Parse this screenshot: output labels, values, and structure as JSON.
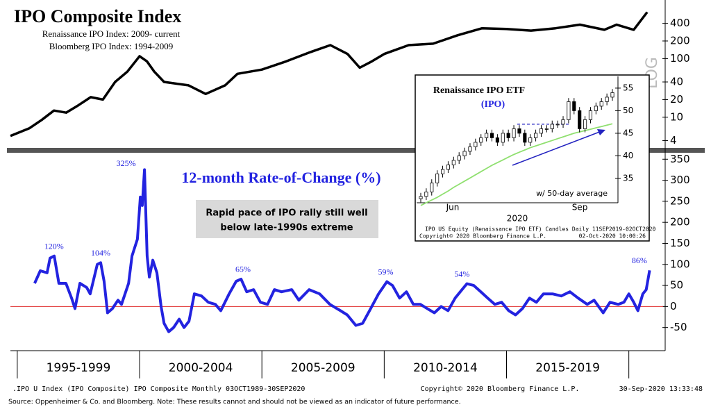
{
  "chart_data": [
    {
      "type": "line",
      "title": "IPO Composite Index",
      "subtitle": [
        "Renaissance IPO Index: 2009- current",
        "Bloomberg IPO Index: 1994-2009"
      ],
      "x": [
        1994.72,
        1995.5,
        1996.0,
        1996.5,
        1997.0,
        1997.5,
        1998.0,
        1998.5,
        1999.0,
        1999.5,
        2000.0,
        2000.3,
        2000.6,
        2001.0,
        2002.0,
        2002.7,
        2003.5,
        2004.0,
        2005.0,
        2006.0,
        2007.0,
        2007.8,
        2008.5,
        2009.0,
        2009.5,
        2010.0,
        2011.0,
        2012.0,
        2013.0,
        2014.0,
        2015.0,
        2016.0,
        2017.0,
        2018.0,
        2019.0,
        2019.5,
        2020.2,
        2020.75
      ],
      "values": [
        4.8,
        6.5,
        9,
        13,
        12,
        16,
        22,
        20,
        40,
        60,
        110,
        90,
        60,
        40,
        35,
        25,
        35,
        55,
        65,
        90,
        130,
        170,
        120,
        70,
        90,
        120,
        170,
        180,
        250,
        330,
        320,
        300,
        330,
        380,
        310,
        380,
        310,
        620
      ],
      "color": "#000000",
      "log_scale": true,
      "scale_note": "LOG",
      "xlim": [
        1994.72,
        2021.4
      ],
      "ylim": [
        3,
        1000
      ],
      "yticks": [
        4,
        10,
        20,
        40,
        100,
        200,
        400
      ]
    },
    {
      "type": "line",
      "title": "12-month Rate-of-Change (%)",
      "note": [
        "Rapid pace of IPO rally still well",
        "below late-1990s extreme"
      ],
      "x": [
        1995.71,
        1995.94,
        1996.22,
        1996.34,
        1996.51,
        1996.7,
        1996.99,
        1997.22,
        1997.36,
        1997.56,
        1997.84,
        1997.98,
        1998.27,
        1998.41,
        1998.55,
        1998.69,
        1998.89,
        1999.12,
        1999.26,
        1999.55,
        1999.69,
        1999.91,
        2000.03,
        2000.11,
        2000.2,
        2000.31,
        2000.4,
        2000.54,
        2000.71,
        2000.88,
        2001.0,
        2001.19,
        2001.39,
        2001.62,
        2001.82,
        2002.02,
        2002.24,
        2002.53,
        2002.81,
        2003.1,
        2003.32,
        2003.66,
        2003.95,
        2004.15,
        2004.38,
        2004.66,
        2004.94,
        2005.23,
        2005.51,
        2005.8,
        2006.22,
        2006.51,
        2006.93,
        2007.36,
        2007.78,
        2008.21,
        2008.49,
        2008.84,
        2009.12,
        2009.4,
        2009.77,
        2010.11,
        2010.34,
        2010.63,
        2010.91,
        2011.19,
        2011.48,
        2011.76,
        2012.05,
        2012.33,
        2012.61,
        2012.9,
        2013.18,
        2013.38,
        2013.66,
        2013.95,
        2014.23,
        2014.52,
        2014.8,
        2015.09,
        2015.37,
        2015.65,
        2015.94,
        2016.22,
        2016.51,
        2016.88,
        2017.24,
        2017.59,
        2017.93,
        2018.3,
        2018.58,
        2018.95,
        2019.23,
        2019.57,
        2019.8,
        2020.0,
        2020.2,
        2020.37,
        2020.57,
        2020.71,
        2020.85
      ],
      "values": [
        55,
        85,
        80,
        115,
        120,
        55,
        55,
        20,
        -5,
        55,
        45,
        30,
        100,
        104,
        60,
        -15,
        -5,
        15,
        5,
        55,
        120,
        160,
        260,
        240,
        325,
        120,
        70,
        110,
        80,
        0,
        -40,
        -60,
        -50,
        -30,
        -50,
        -35,
        30,
        25,
        10,
        5,
        -10,
        30,
        60,
        65,
        35,
        40,
        10,
        5,
        40,
        35,
        40,
        15,
        40,
        30,
        5,
        -10,
        -20,
        -45,
        -40,
        -10,
        30,
        59,
        50,
        20,
        35,
        5,
        5,
        -5,
        -15,
        0,
        -10,
        20,
        40,
        54,
        50,
        35,
        20,
        5,
        10,
        -10,
        -20,
        -5,
        20,
        10,
        30,
        30,
        25,
        35,
        20,
        5,
        15,
        -15,
        10,
        5,
        10,
        30,
        10,
        -10,
        30,
        40,
        86
      ],
      "color": "#2323e0",
      "zero_line_color": "#e03030",
      "annotations": [
        {
          "label": "120%",
          "value": 120,
          "x": 1996.5
        },
        {
          "label": "104%",
          "value": 104,
          "x": 1998.41
        },
        {
          "label": "325%",
          "value": 325,
          "x": 1999.45
        },
        {
          "label": "65%",
          "value": 65,
          "x": 2004.23
        },
        {
          "label": "59%",
          "value": 59,
          "x": 2010.06
        },
        {
          "label": "54%",
          "value": 54,
          "x": 2013.18
        },
        {
          "label": "86%",
          "value": 86,
          "x": 2020.43
        }
      ],
      "xlim": [
        1994.72,
        2021.4
      ],
      "xticks": [
        1995,
        2000,
        2005,
        2010,
        2015,
        2020
      ],
      "x_period_labels": [
        "1995-1999",
        "2000-2004",
        "2005-2009",
        "2010-2014",
        "2015-2019"
      ],
      "ylim": [
        -105,
        362
      ],
      "yticks": [
        -50,
        0,
        50,
        100,
        150,
        200,
        250,
        300,
        350
      ]
    },
    {
      "type": "candlestick",
      "title": "Renaissance IPO ETF",
      "subtitle": "(IPO)",
      "legend": "w/ 50-day average",
      "x_labels": [
        "Jun",
        "Sep"
      ],
      "year_label": "2020",
      "footer": [
        "IPO US Equity (Renaissance IPO ETF) Candles  Daily 11SEP2019-02OCT2020",
        "Copyright© 2020 Bloomberg Finance L.P.",
        "02-Oct-2020 10:00:26"
      ],
      "open": [
        30.5,
        31,
        32,
        34,
        36,
        37,
        38,
        39,
        40,
        41,
        42,
        43,
        44,
        45,
        44,
        43,
        45,
        44,
        46,
        45,
        43,
        44,
        45,
        46,
        46,
        47,
        47,
        48,
        52,
        50,
        46,
        48,
        50,
        51,
        52,
        53
      ],
      "high": [
        31.8,
        32.8,
        34.8,
        36.8,
        37.8,
        38.8,
        39.8,
        40.8,
        41.8,
        42.8,
        43.8,
        44.8,
        45.8,
        45.8,
        44.8,
        45.8,
        45.8,
        46.8,
        46.8,
        45.8,
        44.8,
        45.8,
        46.8,
        46.8,
        47.8,
        47.8,
        48.8,
        52.8,
        52.8,
        50.8,
        48.8,
        50.8,
        51.8,
        52.8,
        53.8,
        54.8
      ],
      "low": [
        29.7,
        30.2,
        31.2,
        33.2,
        35.2,
        36.2,
        37.2,
        38.2,
        39.2,
        40.2,
        41.2,
        42.2,
        43.2,
        43.2,
        42.2,
        42.2,
        43.2,
        43.2,
        44.2,
        42.2,
        42.2,
        43.2,
        44.2,
        45.2,
        45.2,
        46.2,
        46.2,
        47.2,
        49.2,
        45.2,
        45.2,
        47.2,
        49.2,
        50.2,
        51.2,
        52.2
      ],
      "close": [
        31,
        32,
        34,
        36,
        37,
        38,
        39,
        40,
        41,
        42,
        43,
        44,
        45,
        44,
        43,
        45,
        44,
        46,
        45,
        43,
        44,
        45,
        46,
        46,
        47,
        47,
        48,
        52,
        50,
        46,
        48,
        50,
        51,
        52,
        53,
        54
      ],
      "average": [
        29,
        29.6,
        30.2,
        30.8,
        31.5,
        32.2,
        33,
        33.7,
        34.4,
        35.1,
        35.8,
        36.5,
        37.2,
        37.9,
        38.5,
        39.1,
        39.7,
        40.3,
        40.8,
        41.3,
        41.8,
        42.2,
        42.6,
        43,
        43.4,
        43.8,
        44.2,
        44.6,
        45,
        45.3,
        45.6,
        45.9,
        46.2,
        46.5,
        46.8,
        47.1
      ],
      "average_color": "#90e070",
      "hline": 47,
      "hline_color": "#2323c0",
      "ylim": [
        29.6,
        57.6
      ],
      "yticks": [
        35,
        40,
        45,
        50,
        55
      ]
    }
  ],
  "footer": {
    "left": ".IPO U Index (IPO Composite) IPO Composite  Monthly 03OCT1989-30SEP2020",
    "center": "Copyright© 2020 Bloomberg Finance L.P.",
    "right": "30-Sep-2020 13:33:48"
  },
  "source": "Source: Oppenheimer & Co. and Bloomberg. Note:  These results cannot and should not be viewed as an indicator of future performance."
}
